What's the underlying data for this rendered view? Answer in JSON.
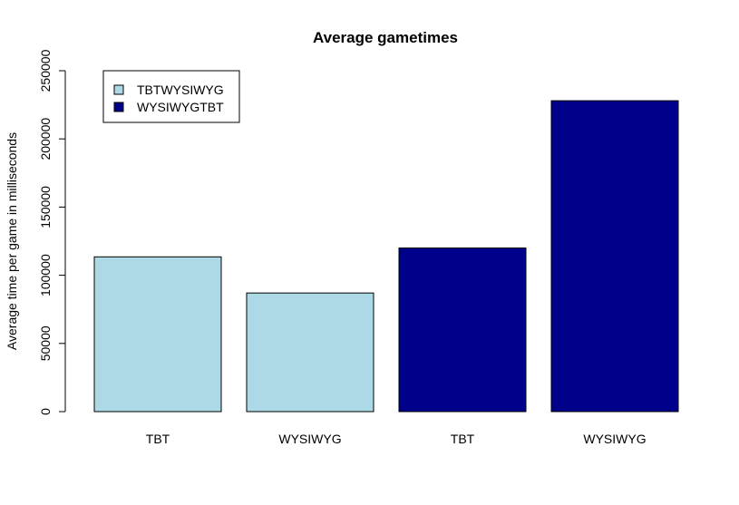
{
  "chart_data": {
    "type": "bar",
    "title": "Average gametimes",
    "xlabel": "",
    "ylabel": "Average time per game in milliseconds",
    "ylim": [
      0,
      250000
    ],
    "y_ticks": [
      0,
      50000,
      100000,
      150000,
      200000,
      250000
    ],
    "y_tick_labels": [
      "0",
      "50000",
      "100000",
      "150000",
      "200000",
      "250000"
    ],
    "grid": false,
    "legend_position": "top-left",
    "categories": [
      "TBT",
      "WYSIWYG",
      "TBT",
      "WYSIWYG"
    ],
    "values": [
      113500,
      87000,
      120000,
      228000
    ],
    "bar_series": [
      "TBTWYSIWYG",
      "TBTWYSIWYG",
      "WYSIWYGTBT",
      "WYSIWYGTBT"
    ],
    "series": [
      {
        "name": "TBTWYSIWYG",
        "color": "#add8e6"
      },
      {
        "name": "WYSIWYGTBT",
        "color": "#00008b"
      }
    ]
  }
}
